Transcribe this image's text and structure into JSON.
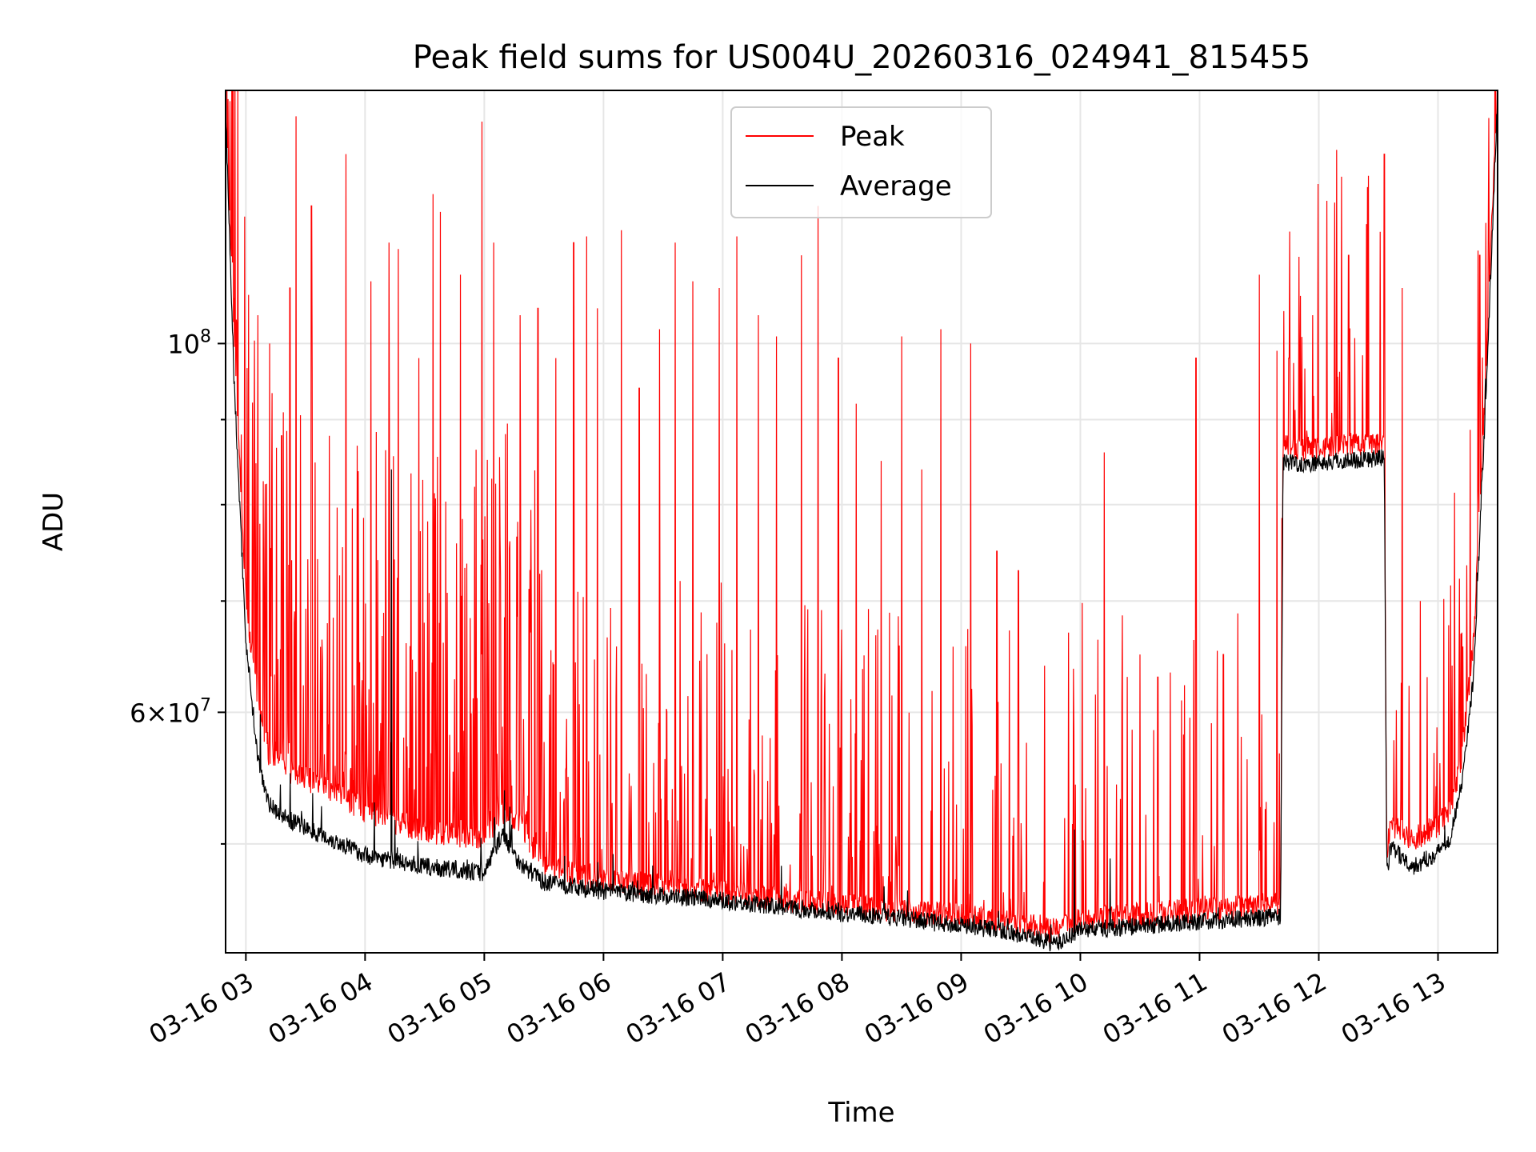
{
  "chart_data": {
    "type": "line",
    "title": "Peak field sums for US004U_20260316_024941_815455",
    "xlabel": "Time",
    "ylabel": "ADU",
    "yscale": "log",
    "xlim_hours": [
      2.83,
      13.5
    ],
    "ylim": [
      43000000,
      142000000
    ],
    "grid": true,
    "legend_position": "top-center",
    "x_tick_labels": [
      "03-16 03",
      "03-16 04",
      "03-16 05",
      "03-16 06",
      "03-16 07",
      "03-16 08",
      "03-16 09",
      "03-16 10",
      "03-16 11",
      "03-16 12",
      "03-16 13"
    ],
    "x_tick_hours": [
      3,
      4,
      5,
      6,
      7,
      8,
      9,
      10,
      11,
      12,
      13
    ],
    "y_major_ticks": [
      {
        "value": 100000000,
        "base": "10",
        "exp": "8",
        "mantissa": ""
      },
      {
        "value": 60000000,
        "base": "10",
        "exp": "7",
        "mantissa": "6"
      }
    ],
    "y_minor_ticks": [
      50000000,
      70000000,
      80000000,
      90000000
    ],
    "series": [
      {
        "name": "Peak",
        "color": "#ff0000",
        "hours": [
          2.83,
          2.9,
          3.0,
          3.1,
          3.2,
          3.35,
          3.6,
          4.0,
          4.5,
          5.0,
          5.15,
          5.3,
          5.5,
          6.0,
          6.5,
          7.0,
          7.5,
          8.0,
          8.5,
          8.9,
          9.3,
          9.8,
          10.0,
          10.5,
          11.0,
          11.5,
          11.68,
          11.7,
          11.9,
          12.2,
          12.5,
          12.55,
          12.57,
          12.6,
          12.8,
          13.0,
          13.1,
          13.2,
          13.3,
          13.4,
          13.5
        ],
        "values": [
          140000000,
          100000000,
          70000000,
          60000000,
          56000000,
          55000000,
          54000000,
          52000000,
          50500000,
          50000000,
          52000000,
          51000000,
          48000000,
          47200000,
          46800000,
          46500000,
          46000000,
          45600000,
          45300000,
          45000000,
          44700000,
          44000000,
          44800000,
          45000000,
          45300000,
          45600000,
          45700000,
          86000000,
          85800000,
          86200000,
          86500000,
          86600000,
          49000000,
          51000000,
          50000000,
          51000000,
          52000000,
          56000000,
          66000000,
          95000000,
          142000000
        ]
      },
      {
        "name": "Average",
        "color": "#000000",
        "hours": [
          2.83,
          2.9,
          3.0,
          3.1,
          3.2,
          3.35,
          3.6,
          4.0,
          4.5,
          5.0,
          5.15,
          5.3,
          5.5,
          6.0,
          6.5,
          7.0,
          7.5,
          8.0,
          8.5,
          8.9,
          9.3,
          9.8,
          10.0,
          10.5,
          11.0,
          11.5,
          11.68,
          11.7,
          11.9,
          12.2,
          12.5,
          12.55,
          12.57,
          12.6,
          12.8,
          13.0,
          13.1,
          13.2,
          13.3,
          13.4,
          13.5
        ],
        "values": [
          138000000,
          95000000,
          66000000,
          56000000,
          52500000,
          51500000,
          50500000,
          49000000,
          48200000,
          47800000,
          50500000,
          48400000,
          47200000,
          46600000,
          46300000,
          46000000,
          45600000,
          45200000,
          44900000,
          44500000,
          44200000,
          43300000,
          44200000,
          44400000,
          44700000,
          44900000,
          45000000,
          84500000,
          84200000,
          84600000,
          84900000,
          85000000,
          47500000,
          49500000,
          48200000,
          49200000,
          50200000,
          54000000,
          63000000,
          92000000,
          140000000
        ]
      }
    ],
    "peak_spikes": [
      {
        "h": 3.1,
        "v": 104000000
      },
      {
        "h": 3.2,
        "v": 100000000
      },
      {
        "h": 3.3,
        "v": 88000000
      },
      {
        "h": 3.37,
        "v": 108000000
      },
      {
        "h": 3.42,
        "v": 137000000
      },
      {
        "h": 3.55,
        "v": 121000000
      },
      {
        "h": 3.7,
        "v": 88000000
      },
      {
        "h": 3.84,
        "v": 130000000
      },
      {
        "h": 4.05,
        "v": 109000000
      },
      {
        "h": 4.2,
        "v": 115000000
      },
      {
        "h": 4.28,
        "v": 114000000
      },
      {
        "h": 4.45,
        "v": 98000000
      },
      {
        "h": 4.57,
        "v": 123000000
      },
      {
        "h": 4.63,
        "v": 120000000
      },
      {
        "h": 4.8,
        "v": 110000000
      },
      {
        "h": 4.98,
        "v": 136000000
      },
      {
        "h": 5.08,
        "v": 115000000
      },
      {
        "h": 5.3,
        "v": 104000000
      },
      {
        "h": 5.45,
        "v": 105000000
      },
      {
        "h": 5.6,
        "v": 98000000
      },
      {
        "h": 5.75,
        "v": 115000000
      },
      {
        "h": 5.86,
        "v": 116000000
      },
      {
        "h": 5.95,
        "v": 105000000
      },
      {
        "h": 6.15,
        "v": 117000000
      },
      {
        "h": 6.3,
        "v": 94000000
      },
      {
        "h": 6.47,
        "v": 102000000
      },
      {
        "h": 6.6,
        "v": 115000000
      },
      {
        "h": 6.75,
        "v": 109000000
      },
      {
        "h": 6.97,
        "v": 108000000
      },
      {
        "h": 7.12,
        "v": 116000000
      },
      {
        "h": 7.3,
        "v": 104000000
      },
      {
        "h": 7.45,
        "v": 101000000
      },
      {
        "h": 7.66,
        "v": 113000000
      },
      {
        "h": 7.8,
        "v": 121000000
      },
      {
        "h": 7.97,
        "v": 98000000
      },
      {
        "h": 8.12,
        "v": 92000000
      },
      {
        "h": 8.33,
        "v": 85000000
      },
      {
        "h": 8.5,
        "v": 101000000
      },
      {
        "h": 8.67,
        "v": 84000000
      },
      {
        "h": 8.83,
        "v": 102000000
      },
      {
        "h": 9.08,
        "v": 100000000
      },
      {
        "h": 9.3,
        "v": 75000000
      },
      {
        "h": 9.48,
        "v": 73000000
      },
      {
        "h": 9.7,
        "v": 64000000
      },
      {
        "h": 9.9,
        "v": 67000000
      },
      {
        "h": 10.2,
        "v": 86000000
      },
      {
        "h": 10.35,
        "v": 61000000
      },
      {
        "h": 10.5,
        "v": 65000000
      },
      {
        "h": 10.65,
        "v": 63000000
      },
      {
        "h": 10.85,
        "v": 61000000
      },
      {
        "h": 10.97,
        "v": 98000000
      },
      {
        "h": 11.2,
        "v": 65000000
      },
      {
        "h": 11.35,
        "v": 58000000
      },
      {
        "h": 11.5,
        "v": 110000000
      },
      {
        "h": 11.65,
        "v": 99000000
      },
      {
        "h": 11.75,
        "v": 98000000
      },
      {
        "h": 11.95,
        "v": 104000000
      },
      {
        "h": 12.15,
        "v": 122000000
      },
      {
        "h": 12.25,
        "v": 113000000
      },
      {
        "h": 12.4,
        "v": 118000000
      },
      {
        "h": 12.55,
        "v": 130000000
      },
      {
        "h": 12.7,
        "v": 108000000
      },
      {
        "h": 12.85,
        "v": 70000000
      },
      {
        "h": 13.05,
        "v": 70000000
      },
      {
        "h": 13.2,
        "v": 67000000
      },
      {
        "h": 13.35,
        "v": 113000000
      }
    ],
    "average_steps": [
      {
        "h": 4.22,
        "v": 84000000
      },
      {
        "h": 5.18,
        "v": 50500000
      },
      {
        "h": 9.95,
        "v": 51000000
      },
      {
        "h": 10.25,
        "v": 49000000
      }
    ]
  },
  "legend": {
    "items": [
      {
        "label": "Peak",
        "color": "#ff0000"
      },
      {
        "label": "Average",
        "color": "#000000"
      }
    ]
  }
}
